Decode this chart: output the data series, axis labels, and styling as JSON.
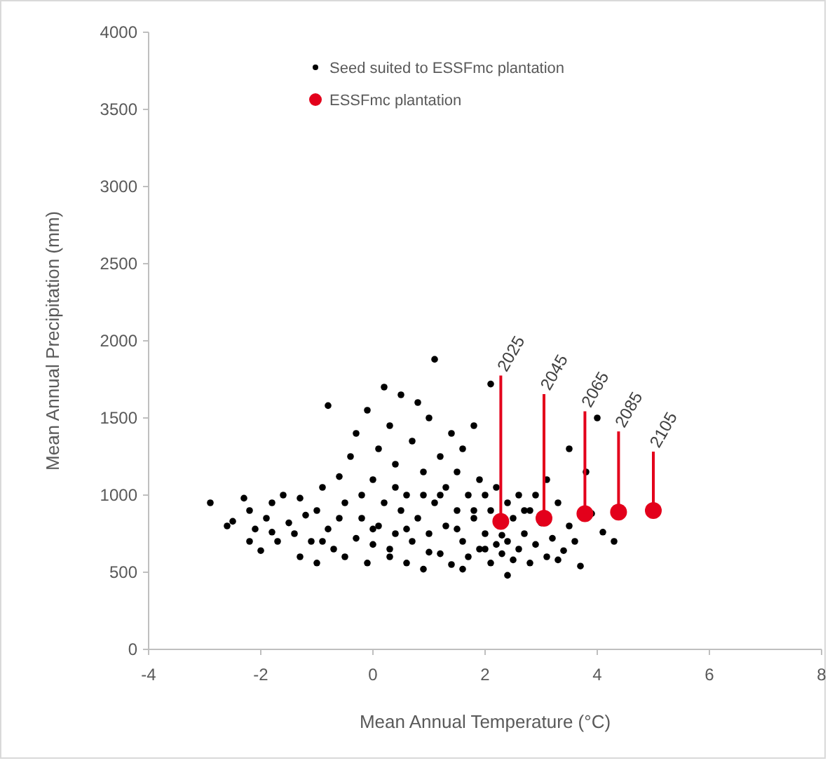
{
  "chart_data": {
    "type": "scatter",
    "xlabel": "Mean Annual Temperature (°C)",
    "ylabel": "Mean Annual Precipitation (mm)",
    "xlim": [
      -4,
      8
    ],
    "xticks": [
      -4,
      -2,
      0,
      2,
      4,
      6,
      8
    ],
    "ylim": [
      0,
      4000
    ],
    "yticks": [
      0,
      500,
      1000,
      1500,
      2000,
      2500,
      3000,
      3500,
      4000
    ],
    "grid": false,
    "legend": "top",
    "marker": "circle",
    "series": [
      {
        "name": "Seed suited to ESSFmc plantation",
        "color": "#000000",
        "x": [
          -2.9,
          -2.6,
          -2.5,
          -2.3,
          -2.2,
          -2.2,
          -2.1,
          -2.0,
          -1.9,
          -1.8,
          -1.7,
          -1.6,
          -1.5,
          -1.4,
          -1.3,
          -1.3,
          -1.2,
          -1.1,
          -1.0,
          -1.0,
          -0.9,
          -0.8,
          -0.8,
          -0.7,
          -0.6,
          -0.5,
          -0.5,
          -0.4,
          -0.3,
          -0.3,
          -0.2,
          -0.1,
          -0.1,
          0,
          0,
          0.1,
          0.1,
          0.2,
          0.2,
          0.3,
          0.3,
          0.4,
          0.4,
          0.5,
          0.5,
          0.6,
          0.6,
          0.7,
          0.7,
          0.8,
          0.8,
          0.9,
          0.9,
          1.0,
          1.0,
          1.1,
          1.1,
          1.2,
          1.2,
          1.3,
          1.3,
          1.4,
          1.4,
          1.5,
          1.5,
          1.6,
          1.6,
          1.7,
          1.7,
          1.8,
          1.8,
          1.9,
          1.9,
          2.0,
          2.0,
          2.1,
          2.1,
          2.2,
          2.2,
          2.3,
          2.3,
          2.4,
          2.4,
          2.5,
          2.5,
          2.6,
          2.6,
          2.7,
          2.8,
          2.8,
          2.9,
          3.0,
          3.1,
          3.1,
          3.2,
          3.3,
          3.4,
          3.5,
          3.5,
          3.6,
          3.7,
          3.8,
          3.9,
          4.0,
          4.1,
          4.3,
          -0.2,
          0.0,
          0.3,
          0.6,
          1.0,
          1.5,
          2.0,
          2.7,
          -1.8,
          -0.6,
          0.9,
          1.8,
          2.4,
          1.2,
          0.4,
          -0.9,
          1.6,
          2.9,
          3.3,
          2.1
        ],
        "values": [
          950,
          800,
          830,
          980,
          700,
          900,
          780,
          640,
          850,
          950,
          700,
          1000,
          820,
          750,
          980,
          600,
          870,
          700,
          560,
          900,
          1050,
          1580,
          780,
          650,
          1120,
          950,
          600,
          1250,
          720,
          1400,
          850,
          1550,
          560,
          1100,
          680,
          1300,
          800,
          1700,
          950,
          600,
          1450,
          1200,
          750,
          1650,
          900,
          1000,
          560,
          1350,
          700,
          1600,
          850,
          1150,
          520,
          1500,
          750,
          1880,
          950,
          1250,
          620,
          1050,
          800,
          1400,
          550,
          900,
          1150,
          700,
          1300,
          1000,
          600,
          850,
          1450,
          650,
          1100,
          750,
          1000,
          560,
          900,
          680,
          1050,
          740,
          620,
          950,
          700,
          580,
          850,
          1000,
          650,
          750,
          900,
          560,
          680,
          820,
          600,
          1100,
          720,
          950,
          640,
          1300,
          800,
          700,
          540,
          1150,
          880,
          1500,
          760,
          700,
          1000,
          780,
          650,
          780,
          630,
          780,
          650,
          900,
          760,
          850,
          1000,
          900,
          480,
          1000,
          1050,
          700,
          520,
          1000,
          580,
          1720
        ]
      },
      {
        "name": "ESSFmc plantation",
        "color": "#e3001b",
        "x": [
          2.28,
          3.05,
          3.78,
          4.38,
          5.0
        ],
        "values": [
          830,
          850,
          880,
          890,
          900
        ]
      }
    ],
    "annotations": [
      {
        "text": "2025",
        "x": 2.28,
        "y": 830
      },
      {
        "text": "2045",
        "x": 3.05,
        "y": 850
      },
      {
        "text": "2065",
        "x": 3.78,
        "y": 880
      },
      {
        "text": "2085",
        "x": 4.38,
        "y": 890
      },
      {
        "text": "2105",
        "x": 5.0,
        "y": 900
      }
    ]
  }
}
